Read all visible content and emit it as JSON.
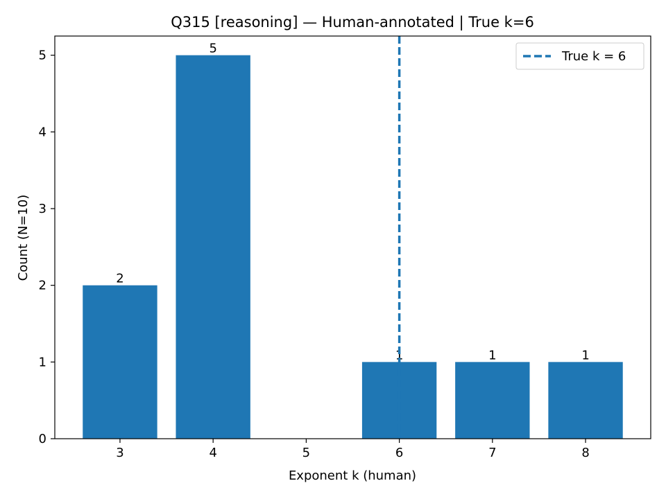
{
  "chart_data": {
    "type": "bar",
    "title": "Q315 [reasoning] — Human-annotated | True k=6",
    "xlabel": "Exponent k (human)",
    "ylabel": "Count (N=10)",
    "categories": [
      "3",
      "4",
      "5",
      "6",
      "7",
      "8"
    ],
    "x": [
      3,
      4,
      5,
      6,
      7,
      8
    ],
    "values": [
      2,
      5,
      0,
      1,
      1,
      1
    ],
    "data_labels": [
      "2",
      "5",
      "",
      "1",
      "1",
      "1"
    ],
    "ylim": [
      0,
      5.25
    ],
    "xlim": [
      2.3,
      8.7
    ],
    "yticks": [
      0,
      1,
      2,
      3,
      4,
      5
    ],
    "ytick_labels": [
      "0",
      "1",
      "2",
      "3",
      "4",
      "5"
    ],
    "bar_color": "#1f77b4",
    "grid": false,
    "reference_line": {
      "x": 6,
      "style": "dashed",
      "color": "#1f77b4",
      "label": "True k = 6"
    },
    "legend": {
      "position": "top-right",
      "entries": [
        "True k = 6"
      ]
    }
  }
}
